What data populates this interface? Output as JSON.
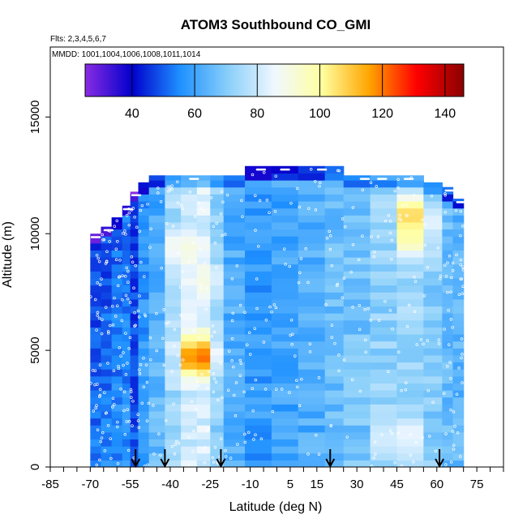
{
  "chart_data": {
    "type": "heatmap",
    "title": "ATOM3 Southbound CO_GMI",
    "subtitle_flights": "Flts: 2,3,4,5,6,7",
    "subtitle_dates": "MMDD: 1001,1004,1006,1008,1011,1014",
    "xlabel": "Latitude (deg N)",
    "ylabel": "Altitude (m)",
    "xlim": [
      -85,
      85
    ],
    "ylim": [
      0,
      18000
    ],
    "x_ticks": [
      -85,
      -70,
      -55,
      -40,
      -25,
      -10,
      5,
      15,
      30,
      45,
      60,
      75
    ],
    "x_tick_labels": [
      "-85",
      "-70",
      "-55",
      "-40",
      "-25",
      "-10",
      "5",
      "15",
      "30",
      "45",
      "60",
      "75"
    ],
    "y_ticks": [
      0,
      5000,
      10000,
      15000
    ],
    "y_tick_labels": [
      "0",
      "5000",
      "10000",
      "15000"
    ],
    "colorbar": {
      "range": [
        25,
        146
      ],
      "ticks": [
        40,
        60,
        80,
        100,
        120,
        140
      ],
      "tick_labels": [
        "40",
        "60",
        "80",
        "100",
        "120",
        "140"
      ],
      "colors": [
        "#8a2be2",
        "#0000cd",
        "#1e90ff",
        "#87cefa",
        "#f0f8ff",
        "#ffffa0",
        "#ffa500",
        "#ff0000",
        "#8b0000"
      ]
    },
    "profile_arrows_lat": [
      -53,
      -42,
      -21,
      20,
      61
    ],
    "columns": [
      {
        "lat": [
          -70,
          -66
        ],
        "top": 10000,
        "v": 52
      },
      {
        "lat": [
          -66,
          -62
        ],
        "top": 10300,
        "v": 54
      },
      {
        "lat": [
          -62,
          -58
        ],
        "top": 10700,
        "v": 56
      },
      {
        "lat": [
          -58,
          -55
        ],
        "top": 11200,
        "v": 57
      },
      {
        "lat": [
          -55,
          -52
        ],
        "top": 11800,
        "v": 50
      },
      {
        "lat": [
          -52,
          -48
        ],
        "top": 12200,
        "v": 60
      },
      {
        "lat": [
          -48,
          -42
        ],
        "top": 12500,
        "v": 66
      },
      {
        "lat": [
          -42,
          -36
        ],
        "top": 12500,
        "v": 74
      },
      {
        "lat": [
          -36,
          -30
        ],
        "top": 12500,
        "v": 80
      },
      {
        "lat": [
          -30,
          -25
        ],
        "top": 12500,
        "v": 82
      },
      {
        "lat": [
          -25,
          -20
        ],
        "top": 12500,
        "v": 72
      },
      {
        "lat": [
          -20,
          -12
        ],
        "top": 12500,
        "v": 62
      },
      {
        "lat": [
          -12,
          -2
        ],
        "top": 12900,
        "v": 58
      },
      {
        "lat": [
          -2,
          8
        ],
        "top": 12900,
        "v": 60
      },
      {
        "lat": [
          8,
          18
        ],
        "top": 12900,
        "v": 62
      },
      {
        "lat": [
          18,
          25
        ],
        "top": 12900,
        "v": 66
      },
      {
        "lat": [
          25,
          35
        ],
        "top": 12500,
        "v": 68
      },
      {
        "lat": [
          35,
          45
        ],
        "top": 12500,
        "v": 72
      },
      {
        "lat": [
          45,
          55
        ],
        "top": 12500,
        "v": 74
      },
      {
        "lat": [
          55,
          62
        ],
        "top": 12200,
        "v": 70
      },
      {
        "lat": [
          62,
          66
        ],
        "top": 12000,
        "v": 66
      },
      {
        "lat": [
          66,
          70
        ],
        "top": 11500,
        "v": 64
      }
    ],
    "blobs": [
      {
        "lat": -30,
        "alt": 4600,
        "v": 128
      },
      {
        "lat": -36,
        "alt": 9200,
        "v": 92
      },
      {
        "lat": -28,
        "alt": 7800,
        "v": 90
      },
      {
        "lat": 50,
        "alt": 10500,
        "v": 112
      },
      {
        "lat": 52,
        "alt": 9800,
        "v": 100
      },
      {
        "lat": 45,
        "alt": 1200,
        "v": 92
      }
    ]
  }
}
